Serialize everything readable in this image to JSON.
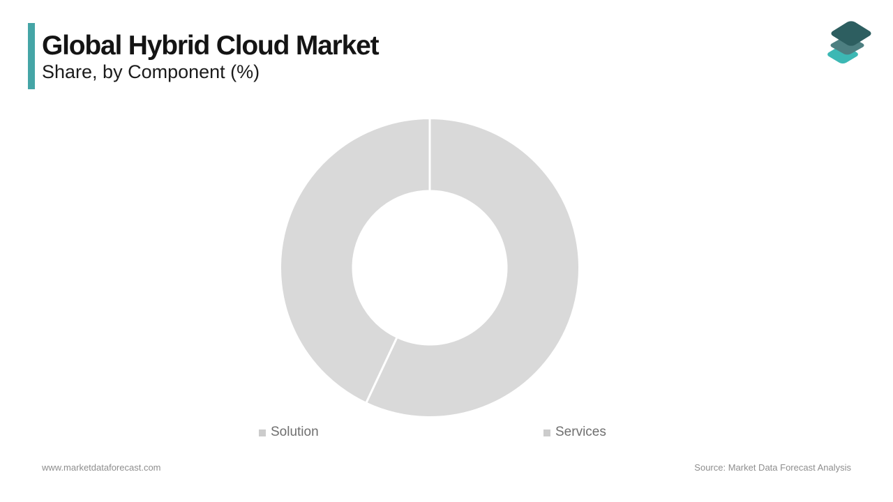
{
  "header": {
    "title": "Global Hybrid Cloud Market",
    "subtitle": "Share, by Component (%)",
    "accent_color": "#45a5a6"
  },
  "logo": {
    "name": "market-data-forecast-logo",
    "layer_colors": {
      "top": "#2d5e60",
      "middle": "#4d7f81",
      "bottom": "#3cb8b4"
    }
  },
  "chart_data": {
    "type": "pie",
    "subtype": "donut",
    "title": "Global Hybrid Cloud Market Share, by Component (%)",
    "categories": [
      "Solution",
      "Services"
    ],
    "values": [
      57,
      43
    ],
    "unit": "%",
    "start_angle_deg": 0,
    "direction": "clockwise",
    "slice_colors": [
      "#d9d9d9",
      "#d9d9d9"
    ],
    "divider_color": "#ffffff",
    "data_labels": false,
    "legend_position": "bottom"
  },
  "legend": {
    "items": [
      {
        "label": "Solution",
        "marker_color": "#cccccc"
      },
      {
        "label": "Services",
        "marker_color": "#cccccc"
      }
    ]
  },
  "footer": {
    "website": "www.marketdataforecast.com",
    "source": "Source: Market Data Forecast Analysis"
  }
}
